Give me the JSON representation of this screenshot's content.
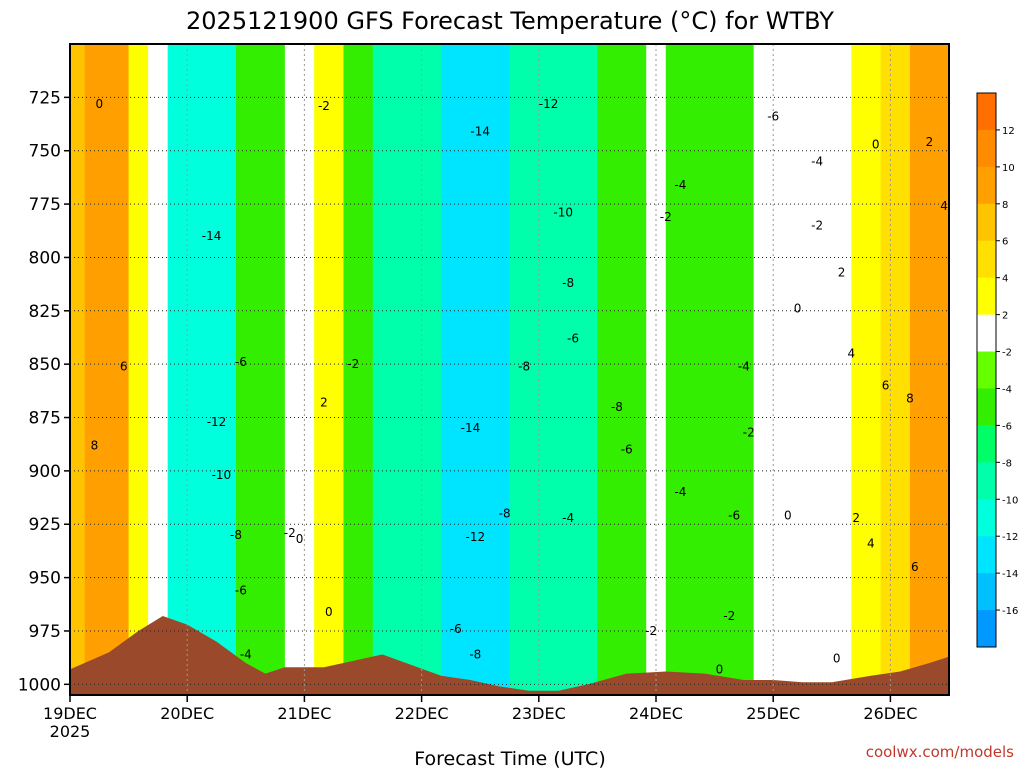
{
  "chart_data": {
    "type": "heatmap",
    "title": "2025121900 GFS Forecast Temperature (°C) for WTBY",
    "xlabel": "Forecast Time (UTC)",
    "ylabel": "",
    "credit": "coolwx.com/models",
    "y_axis": {
      "inverted": true,
      "unit": "hPa",
      "ylim": [
        1005,
        700
      ],
      "ticks": [
        725,
        750,
        775,
        800,
        825,
        850,
        875,
        900,
        925,
        950,
        975,
        1000
      ]
    },
    "x_axis": {
      "unit": "hours since 19DEC 00Z",
      "xlim": [
        0,
        180
      ],
      "ticks": [
        {
          "hour": 0,
          "label": "19DEC",
          "sublabel": "2025"
        },
        {
          "hour": 24,
          "label": "20DEC"
        },
        {
          "hour": 48,
          "label": "21DEC"
        },
        {
          "hour": 72,
          "label": "22DEC"
        },
        {
          "hour": 96,
          "label": "23DEC"
        },
        {
          "hour": 120,
          "label": "24DEC"
        },
        {
          "hour": 144,
          "label": "25DEC"
        },
        {
          "hour": 168,
          "label": "26DEC"
        }
      ]
    },
    "colorbar": {
      "bins": [
        {
          "range": [
            12,
            14
          ],
          "color": "#ff6f00",
          "label": "12"
        },
        {
          "range": [
            10,
            12
          ],
          "color": "#ff8c00",
          "label": "10"
        },
        {
          "range": [
            8,
            10
          ],
          "color": "#ffa000",
          "label": "8"
        },
        {
          "range": [
            6,
            8
          ],
          "color": "#ffc400",
          "label": "6"
        },
        {
          "range": [
            4,
            6
          ],
          "color": "#ffe000",
          "label": "4"
        },
        {
          "range": [
            2,
            4
          ],
          "color": "#ffff00",
          "label": "2"
        },
        {
          "range": [
            -2,
            2
          ],
          "color": "#ffffff",
          "label": "-2"
        },
        {
          "range": [
            -4,
            -2
          ],
          "color": "#66ff00",
          "label": "-4"
        },
        {
          "range": [
            -6,
            -4
          ],
          "color": "#33ee00",
          "label": "-6"
        },
        {
          "range": [
            -8,
            -6
          ],
          "color": "#00ff66",
          "label": "-8"
        },
        {
          "range": [
            -10,
            -8
          ],
          "color": "#00ffaa",
          "label": "-10"
        },
        {
          "range": [
            -12,
            -10
          ],
          "color": "#00ffdd",
          "label": "-12"
        },
        {
          "range": [
            -14,
            -12
          ],
          "color": "#00e5ff",
          "label": "-14"
        },
        {
          "range": [
            -16,
            -14
          ],
          "color": "#00c0ff",
          "label": "-16"
        },
        {
          "range": [
            -18,
            -16
          ],
          "color": "#0099ff",
          "label": ""
        }
      ]
    },
    "terrain_color": "#9a4a2a",
    "terrain_pressure": [
      {
        "hour": 0,
        "p": 993
      },
      {
        "hour": 8,
        "p": 985
      },
      {
        "hour": 14,
        "p": 975
      },
      {
        "hour": 19,
        "p": 968
      },
      {
        "hour": 24,
        "p": 972
      },
      {
        "hour": 30,
        "p": 980
      },
      {
        "hour": 36,
        "p": 990
      },
      {
        "hour": 40,
        "p": 995
      },
      {
        "hour": 44,
        "p": 992
      },
      {
        "hour": 52,
        "p": 992
      },
      {
        "hour": 58,
        "p": 989
      },
      {
        "hour": 64,
        "p": 986
      },
      {
        "hour": 70,
        "p": 991
      },
      {
        "hour": 76,
        "p": 996
      },
      {
        "hour": 82,
        "p": 998
      },
      {
        "hour": 88,
        "p": 1001
      },
      {
        "hour": 94,
        "p": 1003
      },
      {
        "hour": 100,
        "p": 1003
      },
      {
        "hour": 106,
        "p": 1000
      },
      {
        "hour": 114,
        "p": 995
      },
      {
        "hour": 122,
        "p": 994
      },
      {
        "hour": 130,
        "p": 995
      },
      {
        "hour": 138,
        "p": 998
      },
      {
        "hour": 144,
        "p": 998
      },
      {
        "hour": 150,
        "p": 999
      },
      {
        "hour": 156,
        "p": 999
      },
      {
        "hour": 164,
        "p": 996
      },
      {
        "hour": 170,
        "p": 994
      },
      {
        "hour": 176,
        "p": 990
      },
      {
        "hour": 180,
        "p": 987
      }
    ],
    "temperature_regimes": [
      {
        "hour_start": 0,
        "hour_end": 3,
        "temp": 6
      },
      {
        "hour_start": 3,
        "hour_end": 12,
        "temp": 8
      },
      {
        "hour_start": 12,
        "hour_end": 16,
        "temp": 2
      },
      {
        "hour_start": 16,
        "hour_end": 20,
        "temp": 0
      },
      {
        "hour_start": 20,
        "hour_end": 34,
        "temp": -12
      },
      {
        "hour_start": 34,
        "hour_end": 44,
        "temp": -6
      },
      {
        "hour_start": 44,
        "hour_end": 50,
        "temp": 0
      },
      {
        "hour_start": 50,
        "hour_end": 56,
        "temp": 2
      },
      {
        "hour_start": 56,
        "hour_end": 62,
        "temp": -6
      },
      {
        "hour_start": 62,
        "hour_end": 76,
        "temp": -10
      },
      {
        "hour_start": 76,
        "hour_end": 90,
        "temp": -13
      },
      {
        "hour_start": 90,
        "hour_end": 108,
        "temp": -9
      },
      {
        "hour_start": 108,
        "hour_end": 118,
        "temp": -5
      },
      {
        "hour_start": 118,
        "hour_end": 122,
        "temp": 0
      },
      {
        "hour_start": 122,
        "hour_end": 140,
        "temp": -5
      },
      {
        "hour_start": 140,
        "hour_end": 160,
        "temp": 0
      },
      {
        "hour_start": 160,
        "hour_end": 166,
        "temp": 2
      },
      {
        "hour_start": 166,
        "hour_end": 172,
        "temp": 5
      },
      {
        "hour_start": 172,
        "hour_end": 180,
        "temp": 8
      }
    ],
    "contour_labels": [
      {
        "text": "0",
        "hour": 6,
        "p": 728
      },
      {
        "text": "6",
        "hour": 11,
        "p": 851
      },
      {
        "text": "8",
        "hour": 5,
        "p": 888
      },
      {
        "text": "-2",
        "hour": 52,
        "p": 729
      },
      {
        "text": "-14",
        "hour": 29,
        "p": 790
      },
      {
        "text": "-6",
        "hour": 35,
        "p": 849
      },
      {
        "text": "-12",
        "hour": 30,
        "p": 877
      },
      {
        "text": "-10",
        "hour": 31,
        "p": 902
      },
      {
        "text": "-8",
        "hour": 34,
        "p": 930
      },
      {
        "text": "-6",
        "hour": 35,
        "p": 956
      },
      {
        "text": "-4",
        "hour": 36,
        "p": 986
      },
      {
        "text": "-2",
        "hour": 45,
        "p": 929
      },
      {
        "text": "0",
        "hour": 47,
        "p": 932
      },
      {
        "text": "2",
        "hour": 52,
        "p": 868
      },
      {
        "text": "-2",
        "hour": 58,
        "p": 850
      },
      {
        "text": "0",
        "hour": 53,
        "p": 966
      },
      {
        "text": "-14",
        "hour": 84,
        "p": 741
      },
      {
        "text": "-12",
        "hour": 98,
        "p": 728
      },
      {
        "text": "-10",
        "hour": 101,
        "p": 779
      },
      {
        "text": "-8",
        "hour": 102,
        "p": 812
      },
      {
        "text": "-6",
        "hour": 103,
        "p": 838
      },
      {
        "text": "-8",
        "hour": 93,
        "p": 851
      },
      {
        "text": "-14",
        "hour": 82,
        "p": 880
      },
      {
        "text": "-8",
        "hour": 89,
        "p": 920
      },
      {
        "text": "-12",
        "hour": 83,
        "p": 931
      },
      {
        "text": "-4",
        "hour": 102,
        "p": 922
      },
      {
        "text": "-6",
        "hour": 79,
        "p": 974
      },
      {
        "text": "-8",
        "hour": 83,
        "p": 986
      },
      {
        "text": "-8",
        "hour": 112,
        "p": 870
      },
      {
        "text": "-6",
        "hour": 114,
        "p": 890
      },
      {
        "text": "-4",
        "hour": 125,
        "p": 766
      },
      {
        "text": "-2",
        "hour": 122,
        "p": 781
      },
      {
        "text": "-4",
        "hour": 125,
        "p": 910
      },
      {
        "text": "-6",
        "hour": 136,
        "p": 921
      },
      {
        "text": "-2",
        "hour": 119,
        "p": 975
      },
      {
        "text": "-6",
        "hour": 144,
        "p": 734
      },
      {
        "text": "-4",
        "hour": 153,
        "p": 755
      },
      {
        "text": "-2",
        "hour": 153,
        "p": 785
      },
      {
        "text": "-4",
        "hour": 138,
        "p": 851
      },
      {
        "text": "-2",
        "hour": 139,
        "p": 882
      },
      {
        "text": "-2",
        "hour": 135,
        "p": 968
      },
      {
        "text": "0",
        "hour": 133,
        "p": 993
      },
      {
        "text": "0",
        "hour": 149,
        "p": 824
      },
      {
        "text": "0",
        "hour": 147,
        "p": 921
      },
      {
        "text": "0",
        "hour": 157,
        "p": 988
      },
      {
        "text": "0",
        "hour": 165,
        "p": 747
      },
      {
        "text": "2",
        "hour": 176,
        "p": 746
      },
      {
        "text": "2",
        "hour": 158,
        "p": 807
      },
      {
        "text": "4",
        "hour": 160,
        "p": 845
      },
      {
        "text": "4",
        "hour": 179,
        "p": 776
      },
      {
        "text": "2",
        "hour": 161,
        "p": 922
      },
      {
        "text": "4",
        "hour": 164,
        "p": 934
      },
      {
        "text": "6",
        "hour": 167,
        "p": 860
      },
      {
        "text": "8",
        "hour": 172,
        "p": 866
      },
      {
        "text": "6",
        "hour": 173,
        "p": 945
      }
    ]
  }
}
